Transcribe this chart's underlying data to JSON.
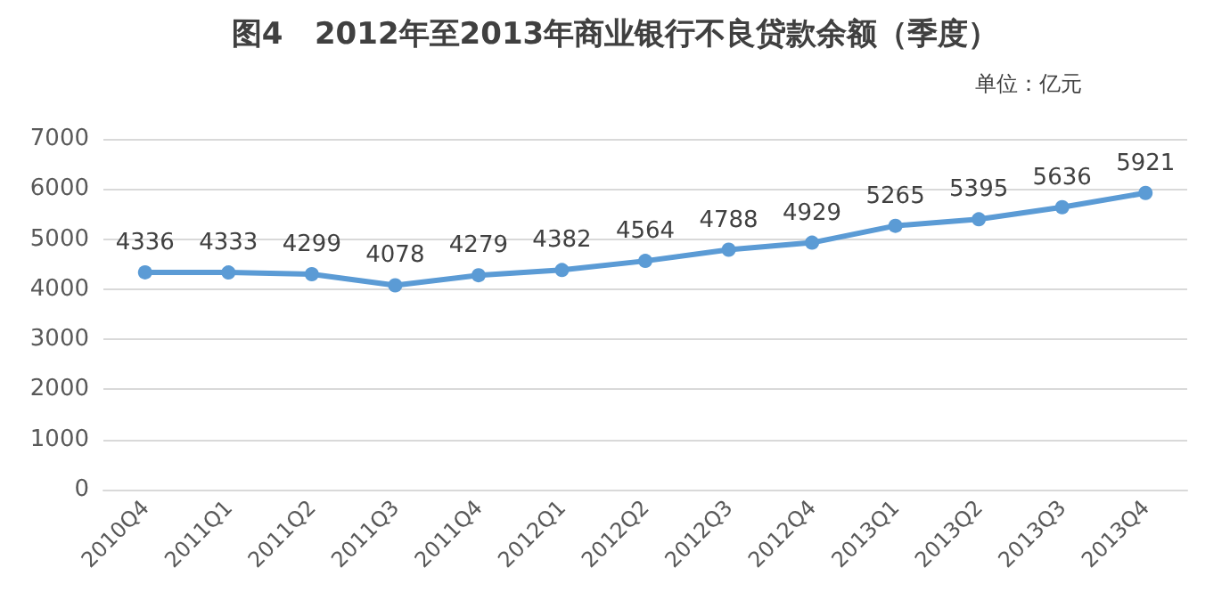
{
  "chart_data": {
    "type": "line",
    "title": "图4   2012年至2013年商业银行不良贷款余额（季度）",
    "subtitle": "单位：亿元",
    "categories": [
      "2010Q4",
      "2011Q1",
      "2011Q2",
      "2011Q3",
      "2011Q4",
      "2012Q1",
      "2012Q2",
      "2012Q3",
      "2012Q4",
      "2013Q1",
      "2013Q2",
      "2013Q3",
      "2013Q4"
    ],
    "series": [
      {
        "color": "#5b9bd5",
        "values": [
          4336,
          4333,
          4299,
          4078,
          4279,
          4382,
          4564,
          4788,
          4929,
          5265,
          5395,
          5636,
          5921
        ]
      }
    ],
    "ylim": [
      0,
      7000
    ],
    "yticks": [
      0,
      1000,
      2000,
      3000,
      4000,
      5000,
      6000,
      7000
    ],
    "grid": "y",
    "marker": "circle",
    "line_style": "solid",
    "data_labels": true
  }
}
